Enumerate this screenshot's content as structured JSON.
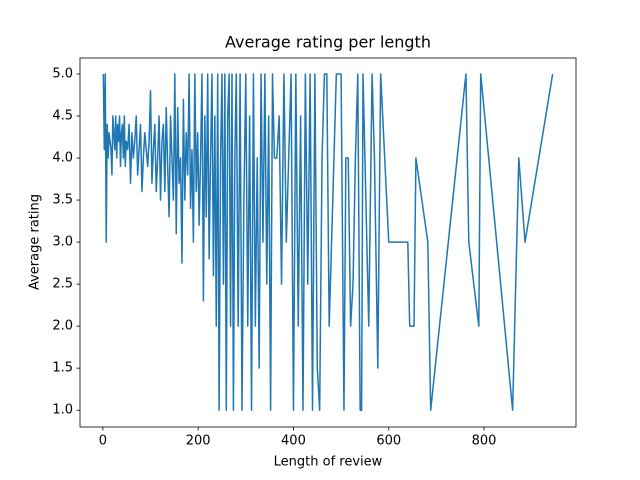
{
  "chart_data": {
    "type": "line",
    "title": "Average rating per length",
    "xlabel": "Length of review",
    "ylabel": "Average rating",
    "color": "#1f77b4",
    "x": [
      1,
      3,
      5,
      7,
      9,
      11,
      13,
      15,
      17,
      19,
      21,
      23,
      25,
      27,
      29,
      31,
      33,
      35,
      37,
      39,
      41,
      43,
      45,
      47,
      49,
      52,
      55,
      58,
      61,
      64,
      67,
      70,
      73,
      76,
      79,
      82,
      85,
      88,
      91,
      94,
      97,
      100,
      103,
      106,
      109,
      112,
      115,
      118,
      121,
      124,
      127,
      130,
      133,
      136,
      139,
      142,
      145,
      148,
      151,
      154,
      157,
      160,
      163,
      166,
      169,
      172,
      175,
      178,
      181,
      184,
      187,
      190,
      193,
      196,
      199,
      202,
      205,
      208,
      211,
      214,
      217,
      220,
      223,
      226,
      229,
      232,
      235,
      238,
      241,
      244,
      247,
      250,
      253,
      256,
      259,
      262,
      265,
      268,
      271,
      274,
      277,
      280,
      284,
      288,
      292,
      296,
      300,
      304,
      308,
      312,
      316,
      320,
      324,
      328,
      332,
      336,
      340,
      344,
      348,
      352,
      356,
      360,
      365,
      370,
      375,
      380,
      385,
      390,
      395,
      400,
      405,
      410,
      415,
      420,
      425,
      430,
      435,
      440,
      445,
      450,
      455,
      460,
      465,
      470,
      475,
      480,
      490,
      497,
      500,
      506,
      510,
      515,
      520,
      525,
      530,
      535,
      540,
      543,
      546,
      550,
      558,
      565,
      570,
      577,
      583,
      600,
      640,
      644,
      653,
      657,
      682,
      688,
      762,
      768,
      789,
      793,
      860,
      873,
      886,
      944
    ],
    "values": [
      5.0,
      4.1,
      5.0,
      3.0,
      4.4,
      4.0,
      4.3,
      4.2,
      4.1,
      3.8,
      4.5,
      4.3,
      4.1,
      4.5,
      4.0,
      4.4,
      4.2,
      4.5,
      3.9,
      4.3,
      4.4,
      4.0,
      4.5,
      3.9,
      4.2,
      4.1,
      4.4,
      3.7,
      4.3,
      4.0,
      4.2,
      4.5,
      3.8,
      4.1,
      4.4,
      3.6,
      4.0,
      4.3,
      4.1,
      3.9,
      4.2,
      4.8,
      3.7,
      4.1,
      4.4,
      3.6,
      4.0,
      4.5,
      3.5,
      4.2,
      4.4,
      3.6,
      4.6,
      3.9,
      3.3,
      4.5,
      4.0,
      3.5,
      5.0,
      3.1,
      4.6,
      3.7,
      4.0,
      2.75,
      4.7,
      3.5,
      4.3,
      3.8,
      5.0,
      3.4,
      4.1,
      3.0,
      5.0,
      3.6,
      4.3,
      3.2,
      4.0,
      5.0,
      2.3,
      4.5,
      3.3,
      5.0,
      2.8,
      4.0,
      5.0,
      2.6,
      4.5,
      2.0,
      5.0,
      1.0,
      4.0,
      5.0,
      2.5,
      5.0,
      1.0,
      4.5,
      5.0,
      2.0,
      5.0,
      1.0,
      4.0,
      5.0,
      2.0,
      5.0,
      1.0,
      3.5,
      5.0,
      2.0,
      4.5,
      1.0,
      5.0,
      2.0,
      4.0,
      1.5,
      5.0,
      3.0,
      5.0,
      2.5,
      4.5,
      1.0,
      5.0,
      4.0,
      4.0,
      4.5,
      2.5,
      5.0,
      3.0,
      4.0,
      5.0,
      1.0,
      5.0,
      2.0,
      4.5,
      1.0,
      5.0,
      2.5,
      5.0,
      1.0,
      5.0,
      1.5,
      1.0,
      4.0,
      5.0,
      5.0,
      2.0,
      3.0,
      5.0,
      5.0,
      5.0,
      1.0,
      4.0,
      4.0,
      2.0,
      2.5,
      4.0,
      5.0,
      1.0,
      1.0,
      5.0,
      4.0,
      2.0,
      5.0,
      4.0,
      1.5,
      5.0,
      3.0,
      3.0,
      2.0,
      2.0,
      4.0,
      3.0,
      1.0,
      5.0,
      3.0,
      2.0,
      5.0,
      1.0,
      4.0,
      3.0,
      5.0
    ],
    "xlim": [
      -48,
      993
    ],
    "ylim": [
      0.8,
      5.19
    ],
    "xticks": [
      0,
      200,
      400,
      600,
      800
    ],
    "yticks": [
      {
        "value": 1,
        "label": "1.0"
      },
      {
        "value": 1.5,
        "label": "1.5"
      },
      {
        "value": 2,
        "label": "2.0"
      },
      {
        "value": 2.5,
        "label": "2.5"
      },
      {
        "value": 3,
        "label": "3.0"
      },
      {
        "value": 3.5,
        "label": "3.5"
      },
      {
        "value": 4,
        "label": "4.0"
      },
      {
        "value": 4.5,
        "label": "4.5"
      },
      {
        "value": 5,
        "label": "5.0"
      }
    ]
  }
}
